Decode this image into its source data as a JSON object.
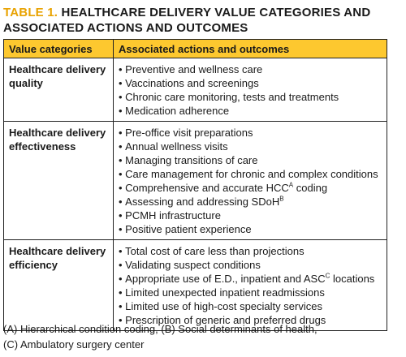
{
  "title": {
    "label": "TABLE 1.",
    "text": "HEALTHCARE DELIVERY VALUE CATEGORIES AND ASSOCIATED ACTIONS AND OUTCOMES"
  },
  "table": {
    "header": [
      "Value categories",
      "Associated actions and outcomes"
    ],
    "rows": [
      {
        "category": "Healthcare delivery quality",
        "items": [
          {
            "text": "Preventive and wellness care"
          },
          {
            "text": "Vaccinations and screenings"
          },
          {
            "text": "Chronic care monitoring, tests and treatments"
          },
          {
            "text": "Medication adherence"
          }
        ]
      },
      {
        "category": "Healthcare delivery effectiveness",
        "items": [
          {
            "text": "Pre-office visit preparations"
          },
          {
            "text": "Annual wellness visits"
          },
          {
            "text": "Managing transitions of care"
          },
          {
            "text": "Care management for chronic and complex conditions"
          },
          {
            "text": "Comprehensive and accurate HCC",
            "sup": "A",
            "after": " coding"
          },
          {
            "text": "Assessing and addressing SDoH",
            "sup": "B"
          },
          {
            "text": "PCMH infrastructure"
          },
          {
            "text": "Positive patient experience"
          }
        ]
      },
      {
        "category": "Healthcare delivery efficiency",
        "items": [
          {
            "text": "Total cost of care less than projections"
          },
          {
            "text": "Validating suspect conditions"
          },
          {
            "text": "Appropriate use of E.D., inpatient and ASC",
            "sup": "C",
            "after": " locations"
          },
          {
            "text": "Limited unexpected inpatient readmissions"
          },
          {
            "text": "Limited use of high-cost specialty services"
          },
          {
            "text": "Prescription of generic and preferred drugs"
          }
        ]
      }
    ]
  },
  "footnote": [
    "(A) Hierarchical condition coding, (B) Social determinants of health,",
    "(C) Ambulatory surgery center"
  ]
}
